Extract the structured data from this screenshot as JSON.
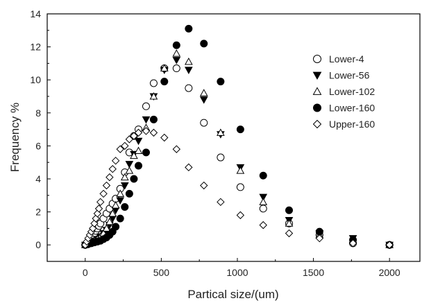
{
  "chart_data": {
    "type": "scatter",
    "title": "",
    "xlabel": "Partical size/(um)",
    "ylabel": "Frequency %",
    "xlim": [
      -250,
      2200
    ],
    "ylim": [
      -1,
      14
    ],
    "xticks": [
      0,
      500,
      1000,
      1500,
      2000
    ],
    "yticks": [
      0,
      2,
      4,
      6,
      8,
      10,
      12,
      14
    ],
    "grid": false,
    "legend_position": "top-right",
    "series": [
      {
        "name": "Lower-4",
        "marker": "circle-open",
        "x": [
          0,
          10,
          20,
          30,
          40,
          50,
          60,
          70,
          80,
          90,
          100,
          120,
          140,
          160,
          180,
          200,
          230,
          260,
          290,
          320,
          350,
          400,
          450,
          520,
          600,
          680,
          780,
          890,
          1020,
          1170,
          1340,
          1540,
          1760,
          2000
        ],
        "y": [
          0,
          0.1,
          0.2,
          0.3,
          0.4,
          0.55,
          0.7,
          0.85,
          1.0,
          1.15,
          1.3,
          1.6,
          1.9,
          2.2,
          2.5,
          2.8,
          3.4,
          4.4,
          5.6,
          6.6,
          7.0,
          8.4,
          9.8,
          10.7,
          10.7,
          9.5,
          7.4,
          5.3,
          3.5,
          2.2,
          1.3,
          0.6,
          0.1,
          0.0
        ]
      },
      {
        "name": "Lower-56",
        "marker": "triangle-down-filled",
        "x": [
          0,
          20,
          40,
          60,
          80,
          100,
          120,
          140,
          160,
          180,
          200,
          230,
          260,
          290,
          320,
          350,
          400,
          450,
          520,
          600,
          680,
          780,
          890,
          1020,
          1170,
          1340,
          1540,
          1760,
          2000
        ],
        "y": [
          0,
          0.1,
          0.15,
          0.25,
          0.35,
          0.5,
          0.7,
          0.9,
          1.2,
          1.6,
          2.1,
          2.7,
          3.6,
          4.9,
          5.5,
          6.3,
          7.6,
          9.0,
          10.6,
          11.2,
          10.6,
          8.8,
          6.7,
          4.7,
          2.9,
          1.5,
          0.7,
          0.4,
          0.0
        ]
      },
      {
        "name": "Lower-102",
        "marker": "triangle-up-open",
        "x": [
          0,
          20,
          40,
          60,
          80,
          100,
          120,
          140,
          160,
          180,
          200,
          230,
          260,
          290,
          320,
          350,
          400,
          450,
          520,
          600,
          680,
          780,
          890,
          1020,
          1170,
          1340,
          1540,
          1760,
          2000
        ],
        "y": [
          0,
          0.1,
          0.15,
          0.25,
          0.35,
          0.5,
          0.7,
          1.0,
          1.4,
          1.9,
          2.4,
          3.1,
          4.1,
          4.5,
          5.4,
          5.7,
          7.1,
          9.0,
          10.7,
          11.6,
          11.1,
          9.2,
          6.8,
          4.5,
          2.6,
          1.3,
          0.6,
          0.3,
          0.0
        ]
      },
      {
        "name": "Lower-160",
        "marker": "circle-filled",
        "x": [
          0,
          20,
          40,
          60,
          80,
          100,
          120,
          140,
          160,
          180,
          200,
          230,
          260,
          290,
          320,
          350,
          400,
          450,
          520,
          600,
          680,
          780,
          890,
          1020,
          1170,
          1340,
          1540,
          1760,
          2000
        ],
        "y": [
          0,
          0.05,
          0.1,
          0.15,
          0.2,
          0.25,
          0.35,
          0.45,
          0.6,
          0.8,
          1.1,
          1.6,
          2.3,
          3.1,
          4.0,
          4.8,
          5.6,
          7.6,
          9.9,
          12.1,
          13.1,
          12.2,
          9.9,
          7.0,
          4.2,
          2.1,
          0.8,
          0.3,
          0.0
        ]
      },
      {
        "name": "Upper-160",
        "marker": "diamond-open",
        "x": [
          0,
          10,
          20,
          30,
          40,
          50,
          60,
          70,
          80,
          90,
          100,
          120,
          140,
          160,
          180,
          200,
          230,
          260,
          290,
          320,
          350,
          400,
          450,
          520,
          600,
          680,
          780,
          890,
          1020,
          1170,
          1340,
          1540,
          1760,
          2000
        ],
        "y": [
          0,
          0.2,
          0.4,
          0.6,
          0.8,
          1.0,
          1.3,
          1.6,
          1.9,
          2.2,
          2.6,
          3.1,
          3.6,
          4.1,
          4.6,
          5.1,
          5.8,
          6.0,
          6.4,
          6.6,
          6.8,
          6.9,
          6.8,
          6.5,
          5.8,
          4.7,
          3.6,
          2.6,
          1.8,
          1.2,
          0.7,
          0.4,
          0.1,
          0.0
        ]
      }
    ]
  }
}
